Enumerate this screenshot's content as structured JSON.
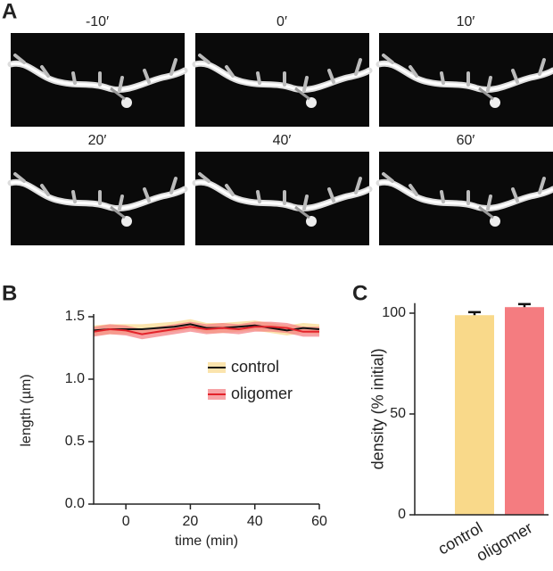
{
  "panel_labels": [
    "A",
    "B",
    "C"
  ],
  "images": {
    "labels": [
      "-10′",
      "0′",
      "10′",
      "20′",
      "40′",
      "60′"
    ]
  },
  "chart_data": [
    {
      "type": "line",
      "xlabel": "time (min)",
      "ylabel": "length (µm)",
      "x": [
        -10,
        -5,
        0,
        5,
        10,
        15,
        20,
        25,
        30,
        35,
        40,
        45,
        50,
        55,
        60
      ],
      "xlim": [
        -10,
        60
      ],
      "xticks": [
        0,
        20,
        40,
        60
      ],
      "ylim": [
        0,
        1.5
      ],
      "yticks": [
        {
          "value": 0,
          "label": "0.0"
        },
        0.5,
        {
          "value": 1,
          "label": "1.0"
        },
        1.5
      ],
      "series": [
        {
          "name": "control",
          "color": "#111111",
          "band_color": "#f9d98a",
          "values": [
            1.39,
            1.4,
            1.4,
            1.4,
            1.41,
            1.42,
            1.44,
            1.41,
            1.41,
            1.42,
            1.43,
            1.41,
            1.39,
            1.41,
            1.4
          ],
          "errors": [
            0.04,
            0.04,
            0.04,
            0.04,
            0.04,
            0.04,
            0.04,
            0.04,
            0.04,
            0.04,
            0.04,
            0.04,
            0.04,
            0.04,
            0.04
          ]
        },
        {
          "name": "oligomer",
          "color": "#e3232b",
          "band_color": "#f47c80",
          "values": [
            1.38,
            1.4,
            1.39,
            1.36,
            1.38,
            1.4,
            1.42,
            1.4,
            1.41,
            1.4,
            1.42,
            1.42,
            1.41,
            1.38,
            1.38
          ],
          "errors": [
            0.04,
            0.04,
            0.04,
            0.04,
            0.04,
            0.04,
            0.04,
            0.04,
            0.04,
            0.04,
            0.04,
            0.04,
            0.04,
            0.04,
            0.04
          ]
        }
      ]
    },
    {
      "type": "bar",
      "ylabel": "density (% initial)",
      "categories": [
        "control",
        "oligomer"
      ],
      "values": [
        99,
        103
      ],
      "errors": [
        1.5,
        1.5
      ],
      "colors": [
        "#f9d98a",
        "#f47c80"
      ],
      "ylim": [
        0,
        105
      ],
      "yticks": [
        0,
        50,
        100
      ]
    }
  ]
}
